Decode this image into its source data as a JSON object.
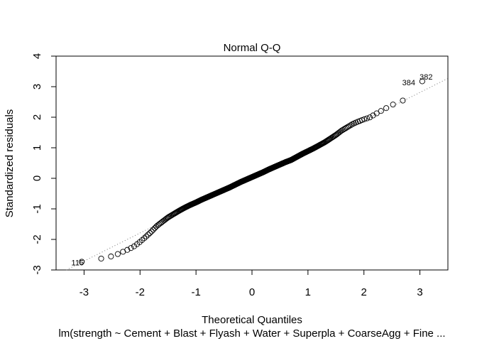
{
  "chart_data": {
    "type": "scatter",
    "title": "Normal Q-Q",
    "xlabel": "Theoretical Quantiles",
    "ylabel": "Standardized residuals",
    "subtitle": "lm(strength ~ Cement + Blast + Flyash + Water + Superpla + CoarseAgg + Fine ...",
    "xlim": [
      -3.5,
      3.5
    ],
    "ylim": [
      -3,
      4
    ],
    "x_ticks": [
      -3,
      -2,
      -1,
      0,
      1,
      2,
      3
    ],
    "y_ticks": [
      -3,
      -2,
      -1,
      0,
      1,
      2,
      3,
      4
    ],
    "reference_line": {
      "intercept": 0.05,
      "slope": 0.92,
      "style": "dotted"
    },
    "labeled_points": [
      {
        "label": "115",
        "x": -3.29,
        "y": -2.76
      },
      {
        "label": "384",
        "x": 2.98,
        "y": 3.14
      },
      {
        "label": "382",
        "x": 3.29,
        "y": 3.32
      }
    ],
    "n_points": 425,
    "curve_x": [
      -3.29,
      -2.96,
      -2.8,
      -2.7,
      -2.6,
      -2.5,
      -2.4,
      -2.3,
      -2.2,
      -2.1,
      -2.0,
      -1.9,
      -1.8,
      -1.7,
      -1.6,
      -1.5,
      -1.4,
      -1.3,
      -1.2,
      -1.1,
      -1.0,
      -0.9,
      -0.8,
      -0.7,
      -0.6,
      -0.5,
      -0.4,
      -0.3,
      -0.2,
      -0.1,
      0.0,
      0.1,
      0.2,
      0.3,
      0.4,
      0.5,
      0.6,
      0.7,
      0.8,
      0.9,
      1.0,
      1.1,
      1.2,
      1.3,
      1.4,
      1.5,
      1.6,
      1.7,
      1.8,
      1.9,
      2.0,
      2.1,
      2.2,
      2.3,
      2.4,
      2.5,
      2.6,
      2.7,
      2.8,
      2.98,
      3.29
    ],
    "curve_y": [
      -2.76,
      -2.72,
      -2.66,
      -2.63,
      -2.59,
      -2.55,
      -2.48,
      -2.4,
      -2.32,
      -2.22,
      -2.08,
      -1.92,
      -1.75,
      -1.56,
      -1.42,
      -1.28,
      -1.17,
      -1.06,
      -0.96,
      -0.87,
      -0.79,
      -0.7,
      -0.62,
      -0.54,
      -0.46,
      -0.38,
      -0.3,
      -0.21,
      -0.12,
      -0.04,
      0.04,
      0.12,
      0.2,
      0.29,
      0.37,
      0.45,
      0.53,
      0.6,
      0.7,
      0.8,
      0.89,
      0.98,
      1.08,
      1.18,
      1.3,
      1.42,
      1.56,
      1.67,
      1.78,
      1.86,
      1.93,
      1.99,
      2.1,
      2.2,
      2.3,
      2.4,
      2.48,
      2.55,
      2.66,
      3.14,
      3.32
    ]
  }
}
